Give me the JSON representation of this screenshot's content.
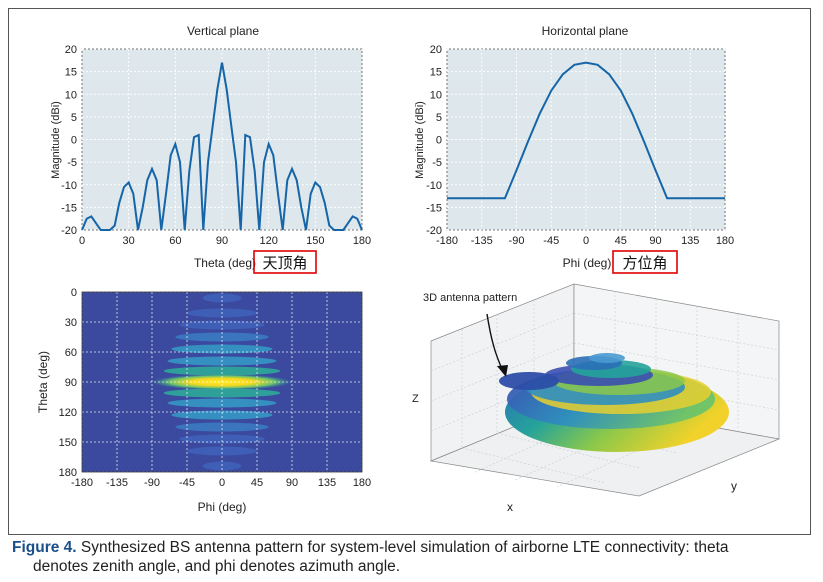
{
  "colors": {
    "line": "#1565a8",
    "panel_bg": "#dde7ec",
    "grid": "#ffffff",
    "annotation_box": "#e00000"
  },
  "chart_data": [
    {
      "type": "line",
      "title": "Vertical plane",
      "xlabel": "Theta (deg)",
      "xlabel_annotation": "天顶角",
      "ylabel": "Magnitude (dBi)",
      "xlim": [
        0,
        180
      ],
      "ylim": [
        -20,
        20
      ],
      "xticks": [
        "0",
        "30",
        "60",
        "90",
        "120",
        "150",
        "180"
      ],
      "yticks": [
        "20",
        "15",
        "10",
        "5",
        "0",
        "-5",
        "-10",
        "-15",
        "-20"
      ],
      "grid": true,
      "x": [
        0,
        3,
        6,
        9,
        12,
        15,
        18,
        21,
        24,
        27,
        30,
        33,
        36,
        39,
        42,
        45,
        48,
        51,
        54,
        57,
        60,
        63,
        66,
        69,
        72,
        75,
        78,
        81,
        84,
        87,
        90,
        93,
        96,
        99,
        102,
        105,
        108,
        111,
        114,
        117,
        120,
        123,
        126,
        129,
        132,
        135,
        138,
        141,
        144,
        147,
        150,
        153,
        156,
        159,
        162,
        165,
        168,
        171,
        174,
        177,
        180
      ],
      "y": [
        -20,
        -17.5,
        -17,
        -18.5,
        -20,
        -20,
        -20,
        -19,
        -14,
        -10.5,
        -9.5,
        -12,
        -20,
        -15,
        -9,
        -6.5,
        -9,
        -20,
        -12,
        -3.5,
        -1,
        -5,
        -20,
        -7,
        0.5,
        1,
        -20,
        -5,
        3,
        11,
        17,
        11,
        3,
        -5,
        -20,
        1,
        0.5,
        -7,
        -20,
        -5,
        -1,
        -3.5,
        -12,
        -20,
        -9,
        -6.5,
        -9,
        -15,
        -20,
        -12,
        -9.5,
        -10.5,
        -14,
        -19,
        -20,
        -20,
        -20,
        -18.5,
        -17,
        -17.5,
        -20
      ]
    },
    {
      "type": "line",
      "title": "Horizontal plane",
      "xlabel": "Phi (deg)",
      "xlabel_annotation": "方位角",
      "ylabel": "Magnitude (dBi)",
      "xlim": [
        -180,
        180
      ],
      "ylim": [
        -20,
        20
      ],
      "xticks": [
        "-180",
        "-135",
        "-90",
        "-45",
        "0",
        "45",
        "90",
        "135",
        "180"
      ],
      "yticks": [
        "20",
        "15",
        "10",
        "5",
        "0",
        "-5",
        "-10",
        "-15",
        "-20"
      ],
      "grid": true,
      "x": [
        -180,
        -105,
        -90,
        -75,
        -60,
        -45,
        -30,
        -15,
        0,
        15,
        30,
        45,
        60,
        75,
        90,
        105,
        180
      ],
      "y": [
        -13,
        -13,
        -6.8,
        -0.4,
        5.7,
        10.8,
        14.4,
        16.5,
        17,
        16.5,
        14.4,
        10.8,
        5.7,
        -0.4,
        -6.8,
        -13,
        -13
      ]
    },
    {
      "type": "heatmap",
      "xlabel": "Phi (deg)",
      "ylabel": "Theta (deg)",
      "xlim": [
        -180,
        180
      ],
      "ylim": [
        0,
        180
      ],
      "xticks": [
        "-180",
        "-135",
        "-90",
        "-45",
        "0",
        "45",
        "90",
        "135",
        "180"
      ],
      "yticks": [
        "0",
        "30",
        "60",
        "90",
        "120",
        "150",
        "180"
      ],
      "rows": [
        {
          "theta": 6,
          "intensity": 0.22,
          "half_width": 25
        },
        {
          "theta": 21,
          "intensity": 0.3,
          "half_width": 45
        },
        {
          "theta": 33,
          "intensity": 0.32,
          "half_width": 55
        },
        {
          "theta": 45,
          "intensity": 0.4,
          "half_width": 60
        },
        {
          "theta": 57,
          "intensity": 0.5,
          "half_width": 65
        },
        {
          "theta": 69,
          "intensity": 0.58,
          "half_width": 70
        },
        {
          "theta": 79,
          "intensity": 0.66,
          "half_width": 75
        },
        {
          "theta": 90,
          "intensity": 1.0,
          "half_width": 90
        },
        {
          "theta": 101,
          "intensity": 0.66,
          "half_width": 75
        },
        {
          "theta": 111,
          "intensity": 0.58,
          "half_width": 70
        },
        {
          "theta": 123,
          "intensity": 0.5,
          "half_width": 65
        },
        {
          "theta": 135,
          "intensity": 0.4,
          "half_width": 60
        },
        {
          "theta": 147,
          "intensity": 0.32,
          "half_width": 55
        },
        {
          "theta": 159,
          "intensity": 0.3,
          "half_width": 45
        },
        {
          "theta": 174,
          "intensity": 0.22,
          "half_width": 25
        }
      ]
    },
    {
      "type": "surface3d",
      "annotation": "3D antenna pattern",
      "xlabel": "x",
      "ylabel": "y",
      "zlabel": "Z"
    }
  ],
  "caption": {
    "lead": "Figure 4.",
    "text": "Synthesized BS antenna pattern for system-level simulation of airborne LTE connectivity: theta",
    "line2": "denotes zenith angle, and phi denotes azimuth angle."
  }
}
